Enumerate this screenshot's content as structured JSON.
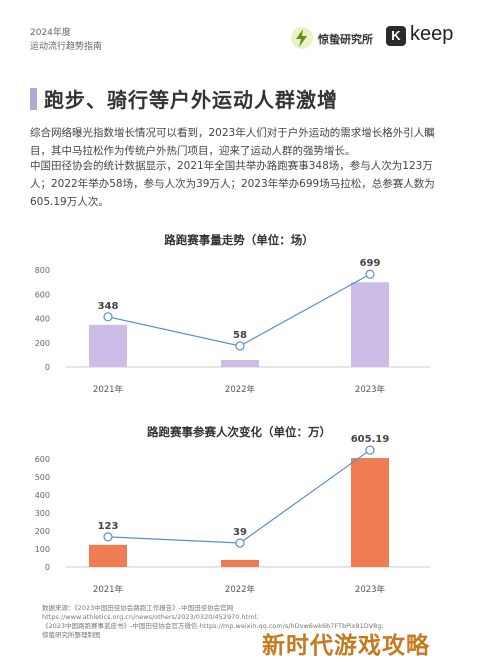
{
  "header": {
    "year_label": "2024年度",
    "report_label": "运动流行趋势指南",
    "brand_name": "惊蛰研究所",
    "keep_logo_letter": "K",
    "keep_brand": "keep",
    "lightning_icon": "lightning-bolt-icon"
  },
  "section": {
    "title": "跑步、骑行等户外运动人群激增",
    "para1": "综合网络曝光指数增长情况可以看到，2023年人们对于户外运动的需求增长格外引人瞩目，其中马拉松作为传统户外热门项目，迎来了运动人群的强势增长。",
    "para2": "中国田径协会的统计数据显示，2021年全国共举办路跑赛事348场，参与人次为123万人；2022年举办58场，参与人次为39万人；2023年举办699场马拉松，总参赛人数为605.19万人次。"
  },
  "colors": {
    "bar_fill": "#cbbde8",
    "bar2_fill": "#f07c53",
    "line": "#5b8cd6",
    "accent_bar": "#b5a6d8",
    "watermark": "#c57a1f"
  },
  "chart_data": [
    {
      "type": "bar",
      "title": "路跑赛事量走势（单位：场）",
      "categories": [
        "2021年",
        "2022年",
        "2023年"
      ],
      "values": [
        348,
        58,
        699
      ],
      "data_labels": [
        "348",
        "58",
        "699"
      ],
      "ylim": [
        0,
        800
      ],
      "yticks": [
        "0",
        "200",
        "400",
        "600",
        "800"
      ],
      "ytick_values": [
        0,
        200,
        400,
        600,
        800
      ],
      "overlay_line": true,
      "grid": false
    },
    {
      "type": "bar",
      "title": "路跑赛事参赛人次变化（单位：万）",
      "categories": [
        "2021年",
        "2022年",
        "2023年"
      ],
      "values": [
        123,
        39,
        605.19
      ],
      "data_labels": [
        "123",
        "39",
        "605.19"
      ],
      "ylim": [
        0,
        600
      ],
      "yticks": [
        "0",
        "100",
        "200",
        "300",
        "400",
        "500",
        "600"
      ],
      "ytick_values": [
        0,
        100,
        200,
        300,
        400,
        500,
        600
      ],
      "overlay_line": true,
      "grid": false
    }
  ],
  "source": {
    "line1": "数据来源：《2023中国田径协会路跑工作报告》-中国田径协会官网",
    "line2": "https://www.athletics.org.cn/news/others/2023/0320/452970.html;",
    "line3": "《2023中国路跑赛事蓝皮书》-中国田径协会官方微信-https://mp.weixin.qq.com/s/hDvw6wk6b7FTbPix81DV8g;",
    "line4": "惊蛰研究所整理制图"
  },
  "watermark": "新时代游戏攻略"
}
